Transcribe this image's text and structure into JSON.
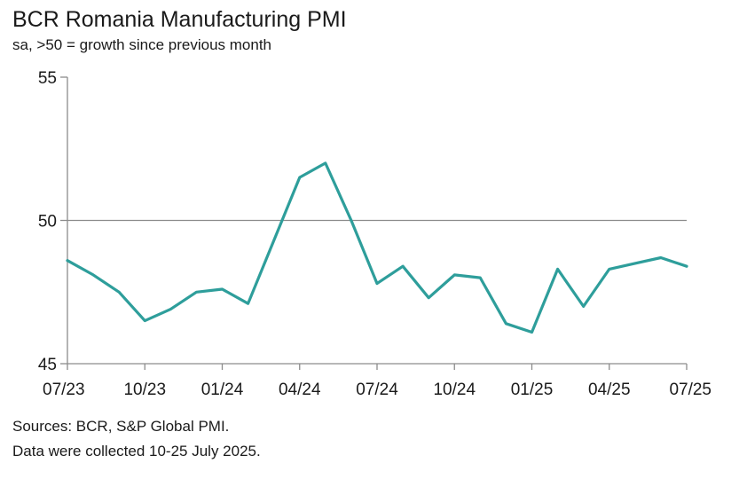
{
  "chart_data": {
    "type": "line",
    "title": "BCR Romania Manufacturing PMI",
    "subtitle": "sa, >50 = growth since previous month",
    "xlabel": "",
    "ylabel": "",
    "ylim": [
      45,
      55
    ],
    "yticks": [
      45,
      50,
      55
    ],
    "x_tick_labels": [
      "07/23",
      "10/23",
      "01/24",
      "04/24",
      "07/24",
      "10/24",
      "01/25",
      "04/25",
      "07/25"
    ],
    "grid": "horizontal line at 50",
    "legend": "none",
    "line_color": "#2e9e9b",
    "series": [
      {
        "x": [
          "07/23",
          "08/23",
          "09/23",
          "10/23",
          "11/23",
          "12/23",
          "01/24",
          "02/24",
          "03/24",
          "04/24",
          "05/24",
          "06/24",
          "07/24",
          "08/24",
          "09/24",
          "10/24",
          "11/24",
          "12/24",
          "01/25",
          "02/25",
          "03/25",
          "04/25",
          "05/25",
          "06/25",
          "07/25"
        ],
        "values": [
          48.6,
          48.1,
          47.5,
          46.5,
          46.9,
          47.5,
          47.6,
          47.1,
          49.3,
          51.5,
          52.0,
          50.0,
          47.8,
          48.4,
          47.3,
          48.1,
          48.0,
          46.4,
          46.1,
          48.3,
          47.0,
          48.3,
          48.5,
          48.7,
          48.4
        ]
      }
    ]
  },
  "footer": {
    "source": "Sources: BCR, S&P Global PMI.",
    "collected": "Data were collected 10-25 July 2025."
  }
}
